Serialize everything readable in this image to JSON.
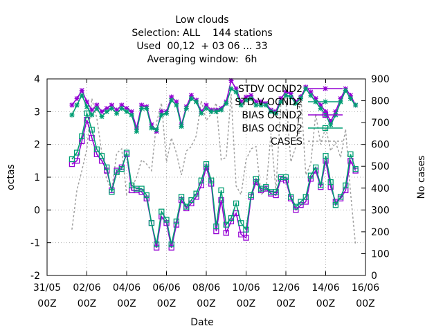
{
  "chart_data": {
    "type": "line",
    "title_lines": [
      "Low clouds",
      "Selection: ALL    144 stations",
      "Used  00,12  + 03 06 ... 33",
      "Averaging window:  6h"
    ],
    "xlabel": "Date",
    "ylabel": "octas",
    "y2label": "No cases",
    "x_ticks": [
      {
        "top": "31/05",
        "bottom": "00Z"
      },
      {
        "top": "02/06",
        "bottom": "00Z"
      },
      {
        "top": "04/06",
        "bottom": "00Z"
      },
      {
        "top": "06/06",
        "bottom": "00Z"
      },
      {
        "top": "08/06",
        "bottom": "00Z"
      },
      {
        "top": "10/06",
        "bottom": "00Z"
      },
      {
        "top": "12/06",
        "bottom": "00Z"
      },
      {
        "top": "14/06",
        "bottom": "00Z"
      },
      {
        "top": "16/06",
        "bottom": "00Z"
      }
    ],
    "x_unit_note": "x values in days after 31/05 00Z",
    "xlim": [
      0,
      16
    ],
    "ylim": [
      -2,
      4
    ],
    "y2lim": [
      0,
      900
    ],
    "y_ticks": [
      "-2",
      "-1",
      "0",
      "1",
      "2",
      "3",
      "4"
    ],
    "y2_ticks": [
      "0",
      "100",
      "200",
      "300",
      "400",
      "500",
      "600",
      "700",
      "800",
      "900"
    ],
    "grid": true,
    "legend_position": "top-right",
    "x": [
      1.25,
      1.5,
      1.75,
      2.0,
      2.25,
      2.5,
      2.75,
      3.0,
      3.25,
      3.5,
      3.75,
      4.0,
      4.25,
      4.5,
      4.75,
      5.0,
      5.25,
      5.5,
      5.75,
      6.0,
      6.25,
      6.5,
      6.75,
      7.0,
      7.25,
      7.5,
      7.75,
      8.0,
      8.25,
      8.5,
      8.75,
      9.0,
      9.25,
      9.5,
      9.75,
      10.0,
      10.25,
      10.5,
      10.75,
      11.0,
      11.25,
      11.5,
      11.75,
      12.0,
      12.25,
      12.5,
      12.75,
      13.0,
      13.25,
      13.5,
      13.75,
      14.0,
      14.25,
      14.5,
      14.75,
      15.0,
      15.25,
      15.5
    ],
    "series": [
      {
        "name": "STDV OCND2",
        "axis": "y",
        "color": "#9400d3",
        "marker": "star",
        "values": [
          3.2,
          3.4,
          3.65,
          3.3,
          3.05,
          3.2,
          3.0,
          3.1,
          3.2,
          3.05,
          3.2,
          3.1,
          3.0,
          2.5,
          3.2,
          3.15,
          2.6,
          2.4,
          3.0,
          3.0,
          3.45,
          3.3,
          2.6,
          3.15,
          3.5,
          3.35,
          3.0,
          3.2,
          3.05,
          3.05,
          3.1,
          3.3,
          3.95,
          3.7,
          3.3,
          3.45,
          3.5,
          3.3,
          3.3,
          3.25,
          3.05,
          3.0,
          3.4,
          3.6,
          3.55,
          3.3,
          3.45,
          3.75,
          3.6,
          3.4,
          3.2,
          3.0,
          2.7,
          3.0,
          3.4,
          3.7,
          3.5,
          3.2
        ]
      },
      {
        "name": "STD V OCND2",
        "axis": "y",
        "color": "#009e73",
        "marker": "star",
        "values": [
          2.9,
          3.2,
          3.5,
          3.15,
          2.9,
          3.1,
          2.85,
          3.0,
          3.1,
          2.95,
          3.1,
          3.0,
          2.9,
          2.4,
          3.1,
          3.1,
          2.5,
          2.45,
          2.9,
          2.95,
          3.35,
          3.2,
          2.55,
          3.1,
          3.4,
          3.3,
          2.95,
          3.1,
          3.0,
          3.0,
          3.05,
          3.25,
          3.7,
          3.6,
          3.2,
          3.35,
          3.4,
          3.2,
          3.2,
          3.2,
          3.0,
          2.95,
          3.3,
          3.5,
          3.45,
          3.25,
          3.4,
          3.7,
          3.5,
          3.3,
          3.1,
          2.9,
          2.6,
          2.9,
          3.3,
          3.65,
          3.4,
          3.2
        ]
      },
      {
        "name": "BIAS OCND2",
        "axis": "y",
        "color": "#9400d3",
        "marker": "square",
        "values": [
          1.4,
          1.5,
          2.1,
          2.75,
          2.2,
          1.7,
          1.5,
          1.2,
          0.6,
          1.2,
          1.3,
          1.7,
          0.6,
          0.6,
          0.55,
          0.35,
          -0.4,
          -1.15,
          -0.2,
          -0.4,
          -1.15,
          -0.45,
          0.3,
          0.05,
          0.2,
          0.4,
          0.75,
          1.3,
          0.8,
          -0.65,
          0.3,
          -0.7,
          -0.35,
          -0.1,
          -0.75,
          -0.85,
          0.4,
          0.85,
          0.6,
          0.65,
          0.5,
          0.45,
          0.95,
          0.9,
          0.35,
          0.0,
          0.15,
          0.25,
          0.95,
          1.2,
          0.7,
          1.5,
          0.7,
          0.25,
          0.35,
          0.6,
          1.5,
          1.2
        ]
      },
      {
        "name": "BIAS OCND2",
        "axis": "y",
        "color": "#009e73",
        "marker": "square",
        "values": [
          1.55,
          1.75,
          2.25,
          2.95,
          2.45,
          1.85,
          1.65,
          1.3,
          0.55,
          1.15,
          1.25,
          1.75,
          0.75,
          0.65,
          0.65,
          0.45,
          -0.4,
          -1.05,
          -0.05,
          -0.3,
          -1.05,
          -0.35,
          0.4,
          0.1,
          0.3,
          0.5,
          0.9,
          1.4,
          0.9,
          -0.5,
          0.6,
          -0.45,
          -0.25,
          0.2,
          -0.4,
          -0.6,
          0.45,
          0.95,
          0.65,
          0.7,
          0.55,
          0.55,
          1.0,
          1.0,
          0.4,
          0.1,
          0.25,
          0.4,
          1.05,
          1.3,
          0.75,
          1.65,
          0.85,
          0.15,
          0.4,
          0.75,
          1.7,
          1.25
        ]
      },
      {
        "name": "CASES",
        "axis": "y2",
        "color": "#a0a0a0",
        "marker": "none",
        "values": [
          210,
          390,
          480,
          580,
          810,
          720,
          560,
          440,
          390,
          560,
          580,
          370,
          400,
          450,
          530,
          510,
          480,
          700,
          790,
          520,
          630,
          560,
          460,
          570,
          590,
          640,
          800,
          710,
          740,
          790,
          530,
          540,
          830,
          410,
          370,
          530,
          580,
          590,
          370,
          390,
          650,
          390,
          790,
          820,
          520,
          590,
          830,
          460,
          510,
          740,
          600,
          680,
          570,
          610,
          540,
          670,
          380,
          140
        ]
      }
    ],
    "legend_entries": [
      {
        "label": "STDV OCND2",
        "sub": ""
      },
      {
        "label": "STD V OCND2",
        "sub": "F"
      },
      {
        "label": "BIAS OCND2",
        "sub": "T"
      },
      {
        "label": "BIAS OCND2",
        "sub": "F"
      },
      {
        "label": "CASES",
        "sub": ""
      }
    ]
  }
}
